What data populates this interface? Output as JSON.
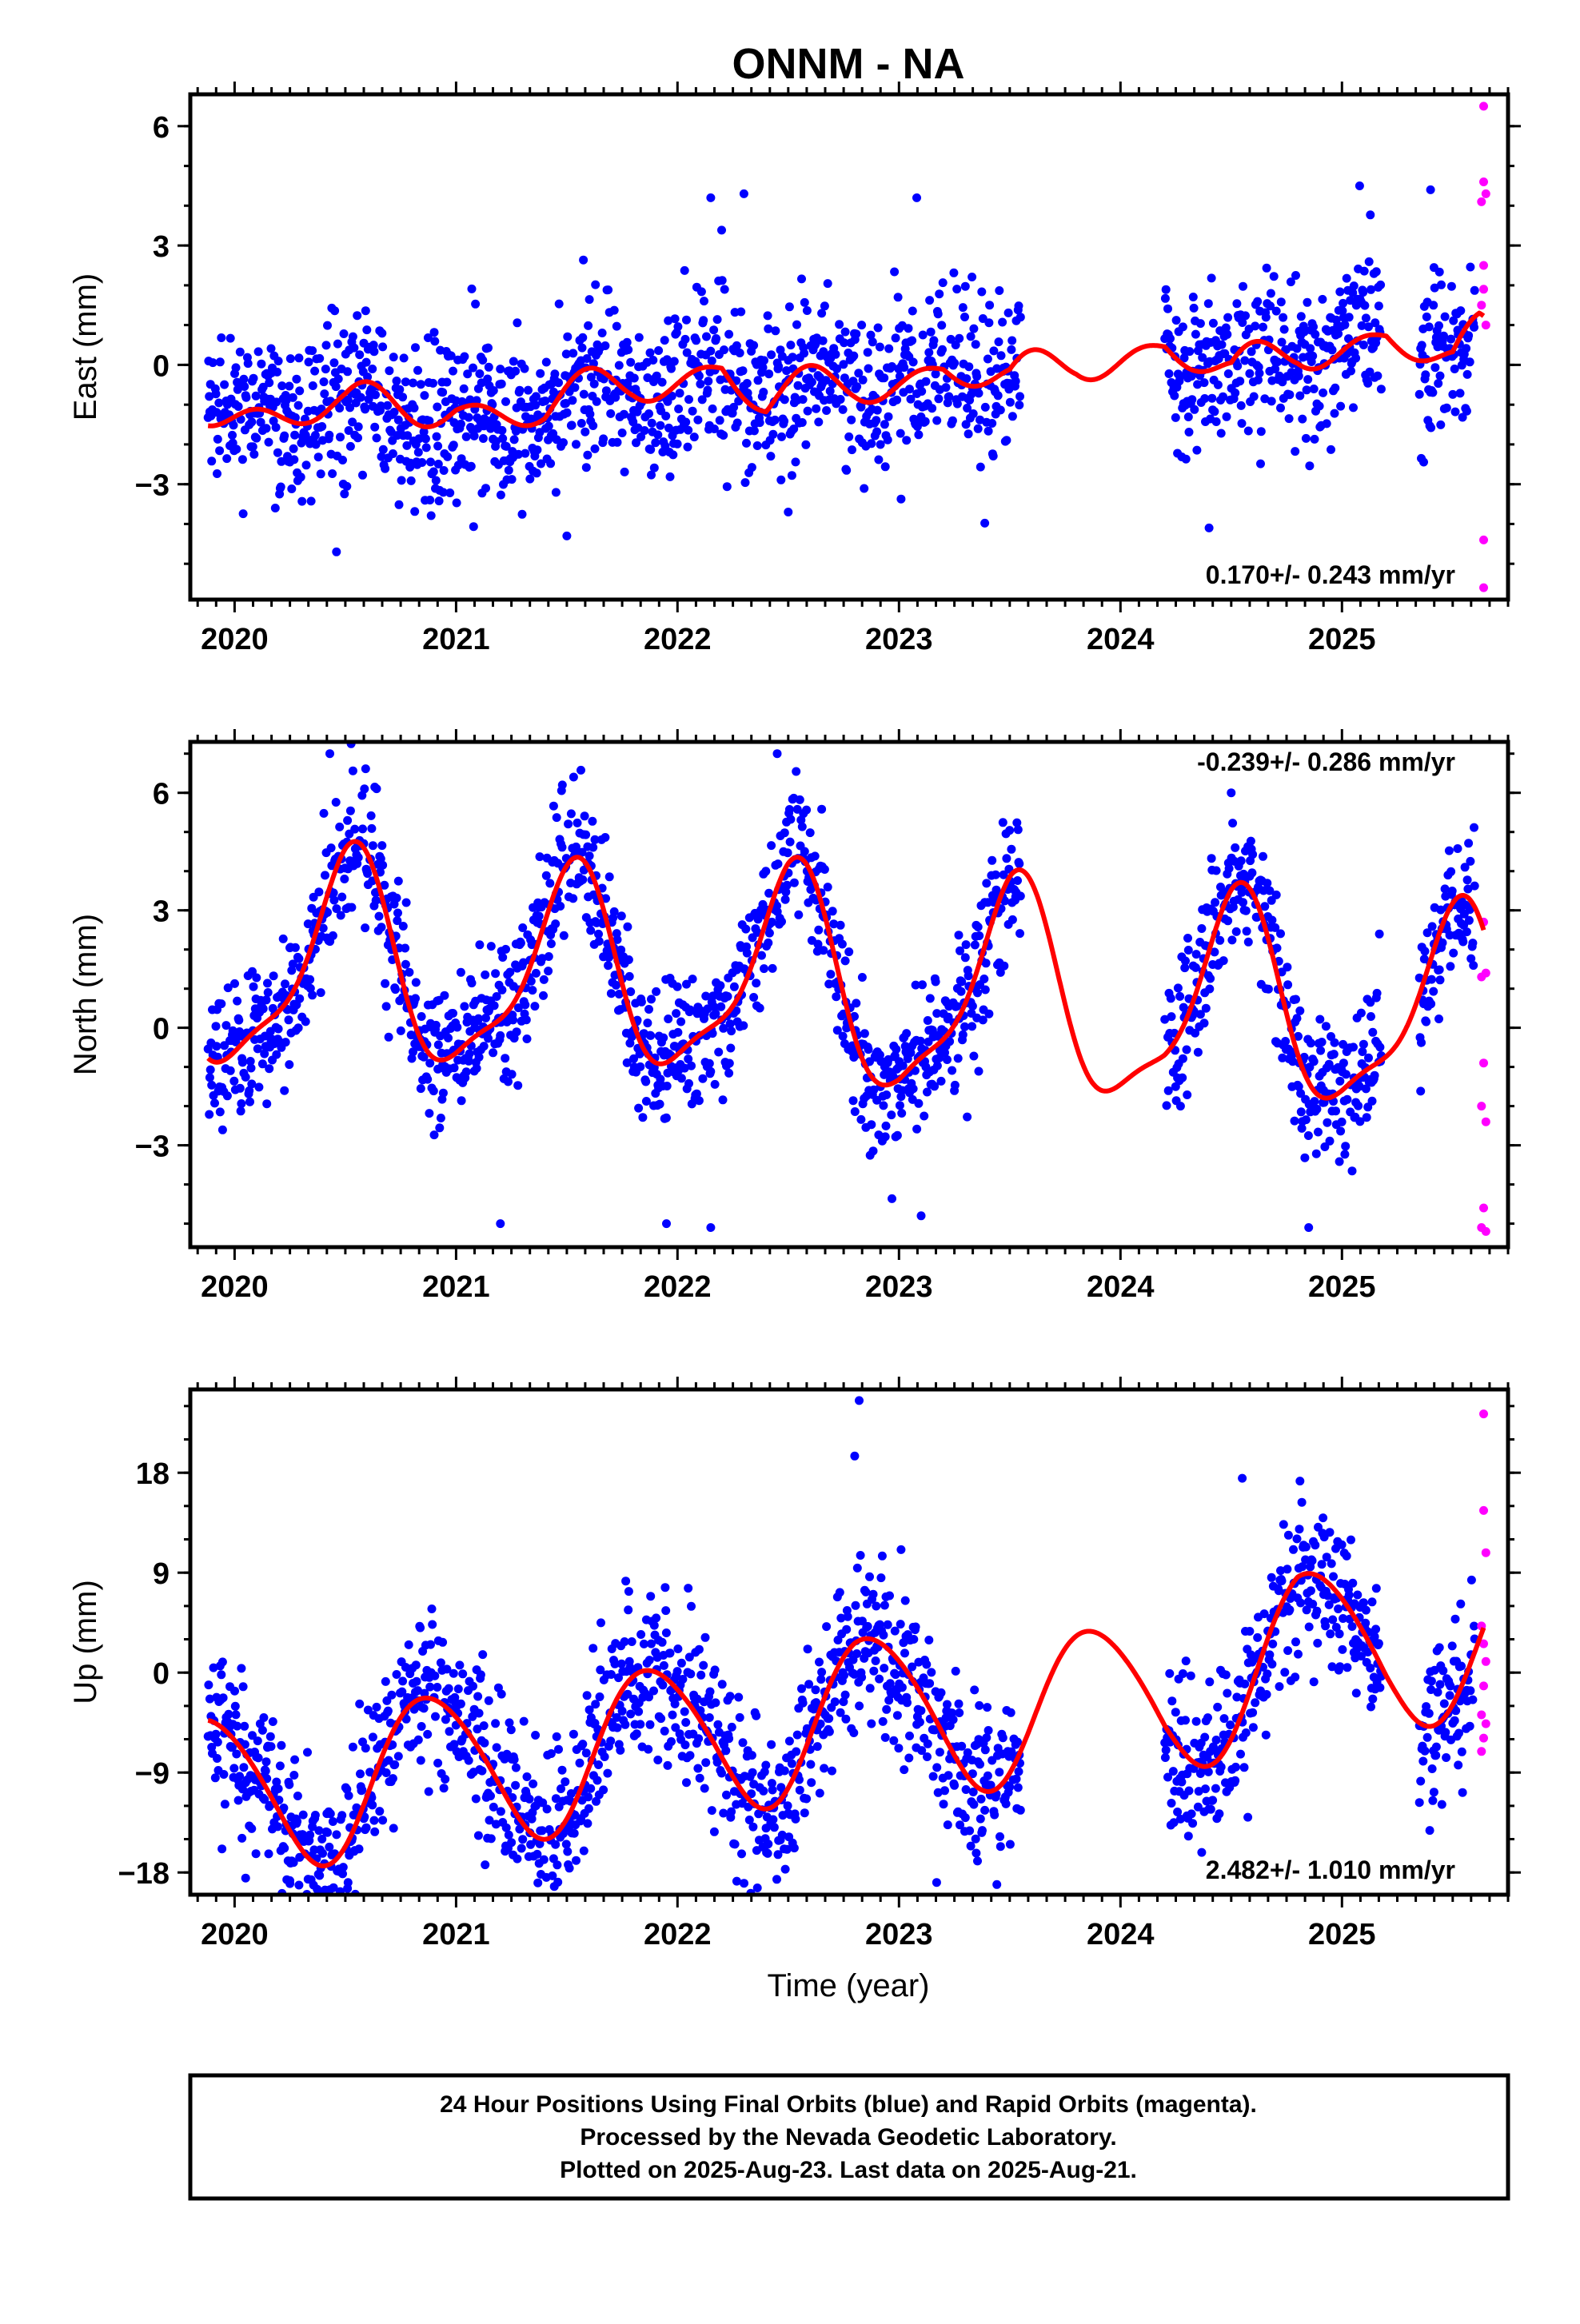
{
  "title": "ONNM - NA",
  "xlabel": "Time (year)",
  "footer": {
    "line1": "24 Hour Positions Using Final Orbits (blue) and Rapid Orbits (magenta).",
    "line2": "Processed by the Nevada Geodetic Laboratory.",
    "line3": "Plotted on 2025-Aug-23. Last data on 2025-Aug-21."
  },
  "colors": {
    "final": "#0000ff",
    "rapid": "#ff00ff",
    "model": "#ff0000",
    "frame": "#000000"
  },
  "chart_data": [
    {
      "type": "scatter",
      "component": "East",
      "ylabel": "East (mm)",
      "rate": "0.170+/- 0.243 mm/yr",
      "rate_position": "bottom-right",
      "xlim": [
        2019.8,
        2025.75
      ],
      "ylim": [
        -5.9,
        6.8
      ],
      "yticks": [
        6,
        3,
        0,
        -3
      ],
      "ytick_labels": [
        "6",
        "3",
        "0",
        "−3"
      ],
      "xticks": [
        2020,
        2021,
        2022,
        2023,
        2024,
        2025
      ],
      "xtick_labels": [
        "2020",
        "2021",
        "2022",
        "2023",
        "2024",
        "2025"
      ],
      "data_segments": [
        [
          2019.88,
          2023.55
        ],
        [
          2024.2,
          2025.18
        ],
        [
          2025.35,
          2025.6
        ]
      ],
      "trend": 0.17,
      "offset": -0.55,
      "seasonal": {
        "a1": -0.1,
        "b1": -0.45,
        "a2": 0.35,
        "b2": 0.15
      },
      "drift": [
        [
          2019.88,
          0.1
        ],
        [
          2020.5,
          -0.4
        ],
        [
          2021.0,
          0.0
        ],
        [
          2021.4,
          -0.6
        ],
        [
          2021.8,
          0.3
        ],
        [
          2022.2,
          0.7
        ],
        [
          2022.4,
          -0.6
        ],
        [
          2022.8,
          0.1
        ],
        [
          2023.2,
          0.5
        ],
        [
          2023.5,
          -0.3
        ],
        [
          2023.8,
          0.5
        ],
        [
          2024.2,
          0.9
        ],
        [
          2024.5,
          -0.3
        ],
        [
          2024.8,
          0.6
        ],
        [
          2025.2,
          1.0
        ],
        [
          2025.5,
          -0.2
        ],
        [
          2025.62,
          0.6
        ]
      ],
      "noise_sd": 1.05,
      "final_points": [
        [
          2020.46,
          -4.7
        ],
        [
          2021.5,
          -4.3
        ],
        [
          2022.15,
          4.2
        ],
        [
          2022.3,
          4.3
        ],
        [
          2023.08,
          4.2
        ],
        [
          2024.4,
          -4.1
        ],
        [
          2025.08,
          4.5
        ],
        [
          2022.5,
          -3.7
        ],
        [
          2025.4,
          4.4
        ]
      ],
      "rapid_points": [
        [
          2025.64,
          6.5
        ],
        [
          2025.64,
          4.6
        ],
        [
          2025.65,
          4.3
        ],
        [
          2025.63,
          4.1
        ],
        [
          2025.64,
          2.5
        ],
        [
          2025.64,
          1.9
        ],
        [
          2025.63,
          1.5
        ],
        [
          2025.65,
          1.0
        ],
        [
          2025.64,
          -4.4
        ],
        [
          2025.64,
          -5.6
        ]
      ]
    },
    {
      "type": "scatter",
      "component": "North",
      "ylabel": "North (mm)",
      "rate": "-0.239+/- 0.286 mm/yr",
      "rate_position": "top-right",
      "xlim": [
        2019.8,
        2025.75
      ],
      "ylim": [
        -5.6,
        7.3
      ],
      "yticks": [
        6,
        3,
        0,
        -3
      ],
      "ytick_labels": [
        "6",
        "3",
        "0",
        "−3"
      ],
      "xticks": [
        2020,
        2021,
        2022,
        2023,
        2024,
        2025
      ],
      "xtick_labels": [
        "2020",
        "2021",
        "2022",
        "2023",
        "2024",
        "2025"
      ],
      "data_segments": [
        [
          2019.88,
          2023.55
        ],
        [
          2024.2,
          2025.18
        ],
        [
          2025.35,
          2025.6
        ]
      ],
      "trend": -0.239,
      "offset": 0.95,
      "seasonal": {
        "a1": -0.3,
        "b1": -2.45,
        "a2": 0.55,
        "b2": 0.45
      },
      "drift": [
        [
          2019.88,
          -0.3
        ],
        [
          2020.5,
          0.2
        ],
        [
          2021.0,
          0.0
        ],
        [
          2021.5,
          0.0
        ],
        [
          2022.0,
          0.2
        ],
        [
          2022.5,
          0.3
        ],
        [
          2023.0,
          -0.2
        ],
        [
          2023.5,
          0.2
        ],
        [
          2024.2,
          -0.2
        ],
        [
          2024.5,
          0.1
        ],
        [
          2025.0,
          0.0
        ],
        [
          2025.62,
          0.0
        ]
      ],
      "noise_sd": 0.9,
      "final_points": [
        [
          2020.43,
          7.0
        ],
        [
          2022.45,
          7.0
        ],
        [
          2021.2,
          -5.0
        ],
        [
          2021.95,
          -5.0
        ],
        [
          2022.15,
          -5.1
        ],
        [
          2023.1,
          -4.8
        ],
        [
          2024.85,
          -5.1
        ],
        [
          2024.5,
          6.0
        ],
        [
          2021.48,
          6.2
        ]
      ],
      "rapid_points": [
        [
          2025.64,
          2.7
        ],
        [
          2025.65,
          1.4
        ],
        [
          2025.63,
          1.3
        ],
        [
          2025.64,
          -0.9
        ],
        [
          2025.63,
          -2.0
        ],
        [
          2025.65,
          -2.4
        ],
        [
          2025.64,
          -4.6
        ],
        [
          2025.63,
          -5.1
        ],
        [
          2025.65,
          -5.2
        ]
      ]
    },
    {
      "type": "scatter",
      "component": "Up",
      "ylabel": "Up (mm)",
      "rate": "2.482+/- 1.010 mm/yr",
      "rate_position": "bottom-right",
      "xlim": [
        2019.8,
        2025.75
      ],
      "ylim": [
        -20.0,
        25.5
      ],
      "yticks": [
        18,
        9,
        0,
        -9,
        -18
      ],
      "ytick_labels": [
        "18",
        "9",
        "0",
        "−9",
        "−18"
      ],
      "xticks": [
        2020,
        2021,
        2022,
        2023,
        2024,
        2025
      ],
      "xtick_labels": [
        "2020",
        "2021",
        "2022",
        "2023",
        "2024",
        "2025"
      ],
      "data_segments": [
        [
          2019.88,
          2023.55
        ],
        [
          2024.2,
          2025.18
        ],
        [
          2025.35,
          2025.6
        ]
      ],
      "trend": 2.482,
      "offset": -4.4,
      "seasonal": {
        "a1": -4.6,
        "b1": 5.2,
        "a2": 0.3,
        "b2": -0.6
      },
      "drift": [
        [
          2019.88,
          0.5
        ],
        [
          2020.5,
          0.0
        ],
        [
          2021.0,
          0.0
        ],
        [
          2022.0,
          0.0
        ],
        [
          2022.8,
          0.5
        ],
        [
          2023.3,
          -0.5
        ],
        [
          2024.2,
          -2.0
        ],
        [
          2024.8,
          1.5
        ],
        [
          2025.2,
          0.0
        ],
        [
          2025.62,
          0.5
        ]
      ],
      "noise_sd": 3.6,
      "final_points": [
        [
          2022.82,
          24.5
        ],
        [
          2022.8,
          19.5
        ],
        [
          2023.17,
          -18.9
        ],
        [
          2020.25,
          -19.0
        ],
        [
          2020.05,
          -18.5
        ],
        [
          2024.3,
          -12.9
        ],
        [
          2021.25,
          -15.3
        ],
        [
          2025.35,
          -11.7
        ],
        [
          2022.4,
          -14.0
        ],
        [
          2024.55,
          17.5
        ]
      ],
      "rapid_points": [
        [
          2025.64,
          23.3
        ],
        [
          2025.64,
          14.6
        ],
        [
          2025.65,
          10.8
        ],
        [
          2025.63,
          4.2
        ],
        [
          2025.64,
          2.6
        ],
        [
          2025.65,
          1.0
        ],
        [
          2025.64,
          -1.2
        ],
        [
          2025.63,
          -3.8
        ],
        [
          2025.65,
          -4.6
        ],
        [
          2025.64,
          -5.9
        ],
        [
          2025.63,
          -7.1
        ]
      ]
    }
  ]
}
